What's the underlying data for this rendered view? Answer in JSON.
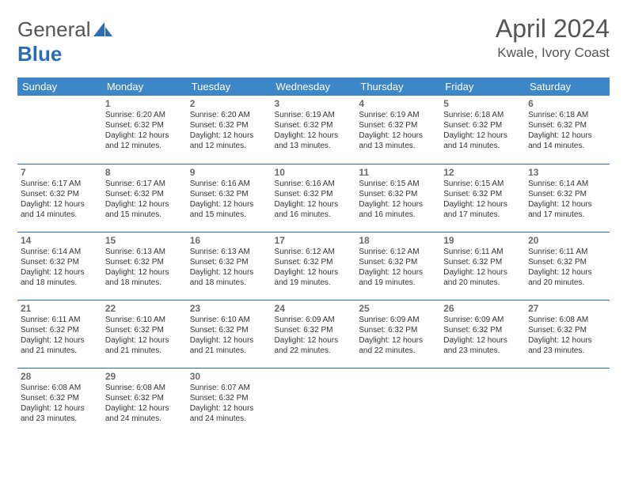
{
  "brand": {
    "part1": "General",
    "part2": "Blue"
  },
  "title": "April 2024",
  "location": "Kwale, Ivory Coast",
  "colors": {
    "header_bg": "#3d87c9",
    "border": "#2a6db5",
    "brand_gray": "#555555",
    "brand_blue": "#2a6db5"
  },
  "weekdays": [
    "Sunday",
    "Monday",
    "Tuesday",
    "Wednesday",
    "Thursday",
    "Friday",
    "Saturday"
  ],
  "weeks": [
    [
      null,
      {
        "n": "1",
        "sr": "Sunrise: 6:20 AM",
        "ss": "Sunset: 6:32 PM",
        "dl": "Daylight: 12 hours and 12 minutes."
      },
      {
        "n": "2",
        "sr": "Sunrise: 6:20 AM",
        "ss": "Sunset: 6:32 PM",
        "dl": "Daylight: 12 hours and 12 minutes."
      },
      {
        "n": "3",
        "sr": "Sunrise: 6:19 AM",
        "ss": "Sunset: 6:32 PM",
        "dl": "Daylight: 12 hours and 13 minutes."
      },
      {
        "n": "4",
        "sr": "Sunrise: 6:19 AM",
        "ss": "Sunset: 6:32 PM",
        "dl": "Daylight: 12 hours and 13 minutes."
      },
      {
        "n": "5",
        "sr": "Sunrise: 6:18 AM",
        "ss": "Sunset: 6:32 PM",
        "dl": "Daylight: 12 hours and 14 minutes."
      },
      {
        "n": "6",
        "sr": "Sunrise: 6:18 AM",
        "ss": "Sunset: 6:32 PM",
        "dl": "Daylight: 12 hours and 14 minutes."
      }
    ],
    [
      {
        "n": "7",
        "sr": "Sunrise: 6:17 AM",
        "ss": "Sunset: 6:32 PM",
        "dl": "Daylight: 12 hours and 14 minutes."
      },
      {
        "n": "8",
        "sr": "Sunrise: 6:17 AM",
        "ss": "Sunset: 6:32 PM",
        "dl": "Daylight: 12 hours and 15 minutes."
      },
      {
        "n": "9",
        "sr": "Sunrise: 6:16 AM",
        "ss": "Sunset: 6:32 PM",
        "dl": "Daylight: 12 hours and 15 minutes."
      },
      {
        "n": "10",
        "sr": "Sunrise: 6:16 AM",
        "ss": "Sunset: 6:32 PM",
        "dl": "Daylight: 12 hours and 16 minutes."
      },
      {
        "n": "11",
        "sr": "Sunrise: 6:15 AM",
        "ss": "Sunset: 6:32 PM",
        "dl": "Daylight: 12 hours and 16 minutes."
      },
      {
        "n": "12",
        "sr": "Sunrise: 6:15 AM",
        "ss": "Sunset: 6:32 PM",
        "dl": "Daylight: 12 hours and 17 minutes."
      },
      {
        "n": "13",
        "sr": "Sunrise: 6:14 AM",
        "ss": "Sunset: 6:32 PM",
        "dl": "Daylight: 12 hours and 17 minutes."
      }
    ],
    [
      {
        "n": "14",
        "sr": "Sunrise: 6:14 AM",
        "ss": "Sunset: 6:32 PM",
        "dl": "Daylight: 12 hours and 18 minutes."
      },
      {
        "n": "15",
        "sr": "Sunrise: 6:13 AM",
        "ss": "Sunset: 6:32 PM",
        "dl": "Daylight: 12 hours and 18 minutes."
      },
      {
        "n": "16",
        "sr": "Sunrise: 6:13 AM",
        "ss": "Sunset: 6:32 PM",
        "dl": "Daylight: 12 hours and 18 minutes."
      },
      {
        "n": "17",
        "sr": "Sunrise: 6:12 AM",
        "ss": "Sunset: 6:32 PM",
        "dl": "Daylight: 12 hours and 19 minutes."
      },
      {
        "n": "18",
        "sr": "Sunrise: 6:12 AM",
        "ss": "Sunset: 6:32 PM",
        "dl": "Daylight: 12 hours and 19 minutes."
      },
      {
        "n": "19",
        "sr": "Sunrise: 6:11 AM",
        "ss": "Sunset: 6:32 PM",
        "dl": "Daylight: 12 hours and 20 minutes."
      },
      {
        "n": "20",
        "sr": "Sunrise: 6:11 AM",
        "ss": "Sunset: 6:32 PM",
        "dl": "Daylight: 12 hours and 20 minutes."
      }
    ],
    [
      {
        "n": "21",
        "sr": "Sunrise: 6:11 AM",
        "ss": "Sunset: 6:32 PM",
        "dl": "Daylight: 12 hours and 21 minutes."
      },
      {
        "n": "22",
        "sr": "Sunrise: 6:10 AM",
        "ss": "Sunset: 6:32 PM",
        "dl": "Daylight: 12 hours and 21 minutes."
      },
      {
        "n": "23",
        "sr": "Sunrise: 6:10 AM",
        "ss": "Sunset: 6:32 PM",
        "dl": "Daylight: 12 hours and 21 minutes."
      },
      {
        "n": "24",
        "sr": "Sunrise: 6:09 AM",
        "ss": "Sunset: 6:32 PM",
        "dl": "Daylight: 12 hours and 22 minutes."
      },
      {
        "n": "25",
        "sr": "Sunrise: 6:09 AM",
        "ss": "Sunset: 6:32 PM",
        "dl": "Daylight: 12 hours and 22 minutes."
      },
      {
        "n": "26",
        "sr": "Sunrise: 6:09 AM",
        "ss": "Sunset: 6:32 PM",
        "dl": "Daylight: 12 hours and 23 minutes."
      },
      {
        "n": "27",
        "sr": "Sunrise: 6:08 AM",
        "ss": "Sunset: 6:32 PM",
        "dl": "Daylight: 12 hours and 23 minutes."
      }
    ],
    [
      {
        "n": "28",
        "sr": "Sunrise: 6:08 AM",
        "ss": "Sunset: 6:32 PM",
        "dl": "Daylight: 12 hours and 23 minutes."
      },
      {
        "n": "29",
        "sr": "Sunrise: 6:08 AM",
        "ss": "Sunset: 6:32 PM",
        "dl": "Daylight: 12 hours and 24 minutes."
      },
      {
        "n": "30",
        "sr": "Sunrise: 6:07 AM",
        "ss": "Sunset: 6:32 PM",
        "dl": "Daylight: 12 hours and 24 minutes."
      },
      null,
      null,
      null,
      null
    ]
  ]
}
